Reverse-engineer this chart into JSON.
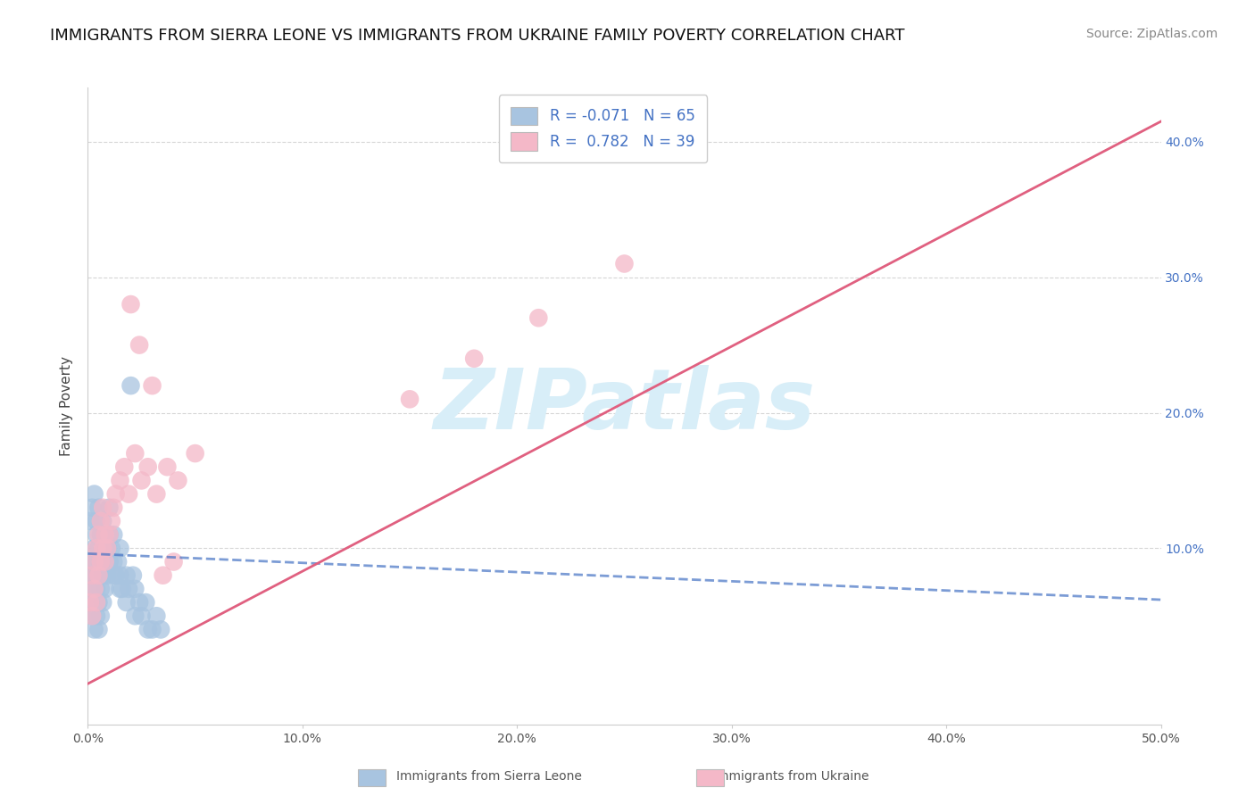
{
  "title": "IMMIGRANTS FROM SIERRA LEONE VS IMMIGRANTS FROM UKRAINE FAMILY POVERTY CORRELATION CHART",
  "source": "Source: ZipAtlas.com",
  "ylabel": "Family Poverty",
  "right_ytick_labels": [
    "10.0%",
    "20.0%",
    "30.0%",
    "40.0%"
  ],
  "right_ytick_values": [
    0.1,
    0.2,
    0.3,
    0.4
  ],
  "xlim": [
    0.0,
    0.5
  ],
  "ylim": [
    -0.03,
    0.44
  ],
  "sierra_leone_R": -0.071,
  "sierra_leone_N": 65,
  "ukraine_R": 0.782,
  "ukraine_N": 39,
  "sierra_leone_color": "#a8c4e0",
  "ukraine_color": "#f4b8c8",
  "sierra_leone_line_color": "#4472c4",
  "ukraine_line_color": "#e06080",
  "watermark_color": "#d8eef8",
  "background_color": "#ffffff",
  "grid_color": "#cccccc",
  "legend_text_color": "#4472c4",
  "title_fontsize": 13,
  "source_fontsize": 10,
  "legend_fontsize": 12,
  "sl_line_x0": 0.0,
  "sl_line_y0": 0.096,
  "sl_line_x1": 0.5,
  "sl_line_y1": 0.062,
  "ua_line_x0": 0.0,
  "ua_line_y0": 0.0,
  "ua_line_x1": 0.5,
  "ua_line_y1": 0.415,
  "sierra_leone_points_x": [
    0.001,
    0.001,
    0.002,
    0.002,
    0.002,
    0.003,
    0.003,
    0.003,
    0.003,
    0.004,
    0.004,
    0.004,
    0.004,
    0.005,
    0.005,
    0.005,
    0.005,
    0.006,
    0.006,
    0.006,
    0.007,
    0.007,
    0.007,
    0.008,
    0.008,
    0.008,
    0.009,
    0.009,
    0.01,
    0.01,
    0.01,
    0.011,
    0.012,
    0.012,
    0.013,
    0.014,
    0.015,
    0.015,
    0.016,
    0.018,
    0.019,
    0.02,
    0.021,
    0.022,
    0.024,
    0.025,
    0.027,
    0.03,
    0.032,
    0.034,
    0.001,
    0.002,
    0.003,
    0.004,
    0.005,
    0.006,
    0.007,
    0.008,
    0.009,
    0.01,
    0.012,
    0.015,
    0.018,
    0.022,
    0.028
  ],
  "sierra_leone_points_y": [
    0.06,
    0.08,
    0.05,
    0.07,
    0.09,
    0.04,
    0.06,
    0.08,
    0.1,
    0.05,
    0.07,
    0.09,
    0.11,
    0.04,
    0.06,
    0.08,
    0.1,
    0.05,
    0.07,
    0.09,
    0.06,
    0.08,
    0.1,
    0.07,
    0.09,
    0.11,
    0.08,
    0.1,
    0.09,
    0.11,
    0.13,
    0.1,
    0.09,
    0.11,
    0.08,
    0.09,
    0.08,
    0.1,
    0.07,
    0.08,
    0.07,
    0.22,
    0.08,
    0.07,
    0.06,
    0.05,
    0.06,
    0.04,
    0.05,
    0.04,
    0.12,
    0.13,
    0.14,
    0.12,
    0.13,
    0.11,
    0.12,
    0.11,
    0.1,
    0.09,
    0.08,
    0.07,
    0.06,
    0.05,
    0.04
  ],
  "ukraine_points_x": [
    0.001,
    0.002,
    0.002,
    0.003,
    0.003,
    0.004,
    0.004,
    0.005,
    0.005,
    0.006,
    0.006,
    0.007,
    0.007,
    0.008,
    0.008,
    0.009,
    0.01,
    0.011,
    0.012,
    0.013,
    0.015,
    0.017,
    0.019,
    0.022,
    0.025,
    0.028,
    0.032,
    0.037,
    0.042,
    0.05,
    0.02,
    0.024,
    0.03,
    0.035,
    0.04,
    0.15,
    0.18,
    0.21,
    0.25
  ],
  "ukraine_points_y": [
    0.06,
    0.05,
    0.08,
    0.07,
    0.09,
    0.06,
    0.1,
    0.08,
    0.11,
    0.09,
    0.12,
    0.1,
    0.13,
    0.11,
    0.09,
    0.1,
    0.11,
    0.12,
    0.13,
    0.14,
    0.15,
    0.16,
    0.14,
    0.17,
    0.15,
    0.16,
    0.14,
    0.16,
    0.15,
    0.17,
    0.28,
    0.25,
    0.22,
    0.08,
    0.09,
    0.21,
    0.24,
    0.27,
    0.31
  ]
}
